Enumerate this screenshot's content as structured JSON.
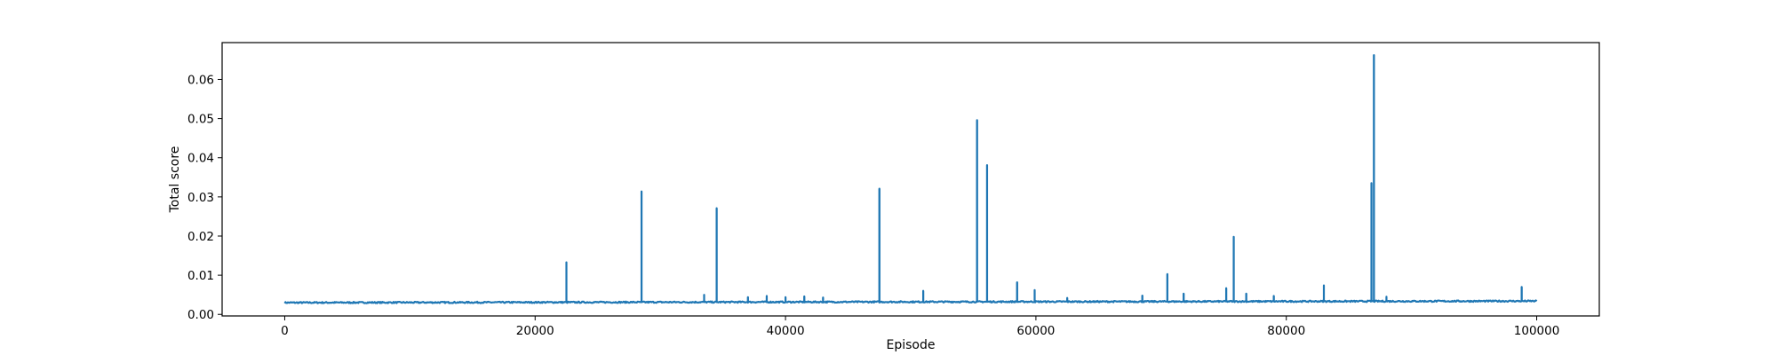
{
  "chart_data": {
    "type": "line",
    "title": "",
    "xlabel": "Episode",
    "ylabel": "Total score",
    "xlim": [
      -5000,
      105000
    ],
    "ylim": [
      -0.0004,
      0.0694
    ],
    "xticks": [
      0,
      20000,
      40000,
      60000,
      80000,
      100000
    ],
    "xtick_labels": [
      "0",
      "20000",
      "40000",
      "60000",
      "80000",
      "100000"
    ],
    "yticks": [
      0.0,
      0.01,
      0.02,
      0.03,
      0.04,
      0.05,
      0.06
    ],
    "ytick_labels": [
      "0.00",
      "0.01",
      "0.02",
      "0.03",
      "0.04",
      "0.05",
      "0.06"
    ],
    "grid": false,
    "legend": "none",
    "line_color": "#1f77b4",
    "baseline": {
      "x_start": 0,
      "x_end": 100000,
      "y_start": 0.003,
      "y_end": 0.0034
    },
    "spikes": [
      {
        "x": 22500,
        "y": 0.0133
      },
      {
        "x": 28500,
        "y": 0.0314
      },
      {
        "x": 33500,
        "y": 0.005
      },
      {
        "x": 34500,
        "y": 0.0271
      },
      {
        "x": 37000,
        "y": 0.0044
      },
      {
        "x": 38500,
        "y": 0.0047
      },
      {
        "x": 40000,
        "y": 0.0044
      },
      {
        "x": 41500,
        "y": 0.0046
      },
      {
        "x": 43000,
        "y": 0.0043
      },
      {
        "x": 47500,
        "y": 0.0321
      },
      {
        "x": 51000,
        "y": 0.006
      },
      {
        "x": 55300,
        "y": 0.0496
      },
      {
        "x": 56100,
        "y": 0.0381
      },
      {
        "x": 58500,
        "y": 0.0082
      },
      {
        "x": 59900,
        "y": 0.0062
      },
      {
        "x": 62500,
        "y": 0.0042
      },
      {
        "x": 68500,
        "y": 0.0048
      },
      {
        "x": 70500,
        "y": 0.0103
      },
      {
        "x": 71800,
        "y": 0.0053
      },
      {
        "x": 75200,
        "y": 0.0067
      },
      {
        "x": 75800,
        "y": 0.0198
      },
      {
        "x": 76800,
        "y": 0.0053
      },
      {
        "x": 79000,
        "y": 0.0047
      },
      {
        "x": 83000,
        "y": 0.0074
      },
      {
        "x": 86800,
        "y": 0.0335
      },
      {
        "x": 87000,
        "y": 0.0662
      },
      {
        "x": 88000,
        "y": 0.0045
      },
      {
        "x": 98800,
        "y": 0.007
      }
    ]
  }
}
